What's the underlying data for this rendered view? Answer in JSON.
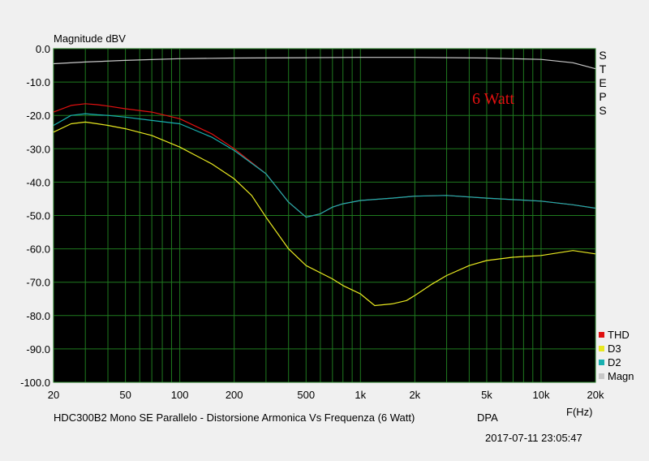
{
  "chart_data": {
    "type": "line",
    "ylabel": "Magnitude dBV",
    "xlabel": "F(Hz)",
    "xscale": "log",
    "xlim": [
      20,
      20000
    ],
    "ylim": [
      -100,
      0
    ],
    "x_ticks": [
      {
        "value": 20,
        "label": "20"
      },
      {
        "value": 50,
        "label": "50"
      },
      {
        "value": 100,
        "label": "100"
      },
      {
        "value": 200,
        "label": "200"
      },
      {
        "value": 500,
        "label": "500"
      },
      {
        "value": 1000,
        "label": "1k"
      },
      {
        "value": 2000,
        "label": "2k"
      },
      {
        "value": 5000,
        "label": "5k"
      },
      {
        "value": 10000,
        "label": "10k"
      },
      {
        "value": 20000,
        "label": "20k"
      }
    ],
    "y_ticks": [
      {
        "value": 0,
        "label": "0.0"
      },
      {
        "value": -10,
        "label": "-10.0"
      },
      {
        "value": -20,
        "label": "-20.0"
      },
      {
        "value": -30,
        "label": "-30.0"
      },
      {
        "value": -40,
        "label": "-40.0"
      },
      {
        "value": -50,
        "label": "-50.0"
      },
      {
        "value": -60,
        "label": "-60.0"
      },
      {
        "value": -70,
        "label": "-70.0"
      },
      {
        "value": -80,
        "label": "-80.0"
      },
      {
        "value": -90,
        "label": "-90.0"
      },
      {
        "value": -100,
        "label": "-100.0"
      }
    ],
    "grid": true,
    "background": "#000000",
    "grid_color": "#1f7a1f",
    "legend_position": "bottom-right",
    "annotation": {
      "text": "6 Watt",
      "color": "#e01010"
    },
    "series": [
      {
        "name": "Magn",
        "color": "#c8c8c8",
        "x": [
          20,
          30,
          50,
          100,
          200,
          500,
          1000,
          2000,
          5000,
          10000,
          15000,
          20000
        ],
        "y": [
          -4.5,
          -4.0,
          -3.5,
          -3.0,
          -2.8,
          -2.7,
          -2.6,
          -2.6,
          -2.8,
          -3.2,
          -4.2,
          -6.0
        ]
      },
      {
        "name": "THD",
        "color": "#e01010",
        "x": [
          20,
          25,
          30,
          35,
          40,
          50,
          70,
          100,
          150,
          200,
          300,
          400,
          500,
          600,
          700,
          800,
          1000,
          1500,
          2000,
          3000,
          5000,
          10000,
          15000,
          20000
        ],
        "y": [
          -19.0,
          -17.0,
          -16.5,
          -16.8,
          -17.2,
          -18.0,
          -19.0,
          -21.0,
          -25.5,
          -30.0,
          -37.5,
          -46.0,
          -50.5,
          -49.5,
          -47.5,
          -46.5,
          -45.5,
          -44.8,
          -44.2,
          -44.0,
          -44.8,
          -45.7,
          -46.8,
          -47.8
        ]
      },
      {
        "name": "D2",
        "color": "#18b0b0",
        "x": [
          20,
          25,
          30,
          35,
          40,
          50,
          70,
          100,
          150,
          200,
          300,
          400,
          500,
          600,
          700,
          800,
          1000,
          1500,
          2000,
          3000,
          5000,
          10000,
          15000,
          20000
        ],
        "y": [
          -23.0,
          -20.0,
          -19.5,
          -19.8,
          -20.0,
          -20.5,
          -21.5,
          -22.5,
          -26.5,
          -30.5,
          -37.5,
          -46.0,
          -50.5,
          -49.5,
          -47.5,
          -46.5,
          -45.5,
          -44.8,
          -44.2,
          -44.0,
          -44.8,
          -45.7,
          -46.8,
          -47.8
        ]
      },
      {
        "name": "D3",
        "color": "#e8e820",
        "x": [
          20,
          25,
          30,
          35,
          40,
          50,
          70,
          100,
          150,
          200,
          250,
          300,
          400,
          500,
          700,
          800,
          1000,
          1200,
          1500,
          1800,
          2000,
          2500,
          3000,
          4000,
          5000,
          7000,
          10000,
          15000,
          20000
        ],
        "y": [
          -25.0,
          -22.5,
          -22.0,
          -22.5,
          -23.0,
          -24.0,
          -26.0,
          -29.5,
          -34.5,
          -39.0,
          -44.0,
          -50.5,
          -60.0,
          -65.0,
          -69.0,
          -71.0,
          -73.5,
          -77.0,
          -76.5,
          -75.5,
          -74.0,
          -70.5,
          -68.0,
          -65.0,
          -63.5,
          -62.5,
          -62.0,
          -60.5,
          -61.5
        ]
      }
    ]
  },
  "steps_label": "STEPS",
  "footer": {
    "caption": "HDC300B2 Mono SE Parallelo - Distorsione Armonica Vs Frequenza (6 Watt)",
    "tag": "DPA",
    "timestamp": "2017-07-11 23:05:47"
  }
}
